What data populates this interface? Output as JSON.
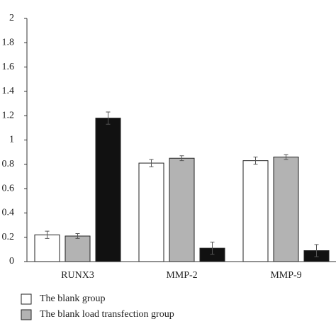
{
  "chart_data": {
    "type": "bar",
    "categories": [
      "RUNX3",
      "MMP-2",
      "MMP-9"
    ],
    "series": [
      {
        "name": "The blank group",
        "color": "#ffffff",
        "values": [
          0.22,
          0.81,
          0.83
        ],
        "errors": [
          0.03,
          0.03,
          0.03
        ]
      },
      {
        "name": "The blank load transfection group",
        "color": "#b3b3b3",
        "values": [
          0.21,
          0.85,
          0.86
        ],
        "errors": [
          0.02,
          0.02,
          0.02
        ]
      },
      {
        "color": "#111111",
        "values": [
          1.18,
          0.11,
          0.09
        ],
        "errors": [
          0.05,
          0.05,
          0.05
        ]
      }
    ],
    "ylim": [
      0,
      2
    ],
    "yticks": [
      0,
      0.2,
      0.4,
      0.6,
      0.8,
      1,
      1.2,
      1.4,
      1.6,
      1.8,
      2
    ],
    "grid": false
  }
}
